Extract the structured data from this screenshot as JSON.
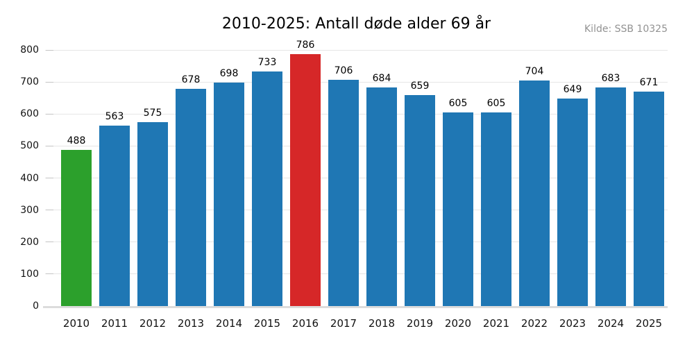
{
  "header": {
    "title": "2010-2025: Antall døde alder 69 år",
    "source": "Kilde: SSB 10325"
  },
  "chart_data": {
    "type": "bar",
    "title": "2010-2025: Antall døde alder 69 år",
    "source_annotation": "Kilde: SSB 10325",
    "categories": [
      "2010",
      "2011",
      "2012",
      "2013",
      "2014",
      "2015",
      "2016",
      "2017",
      "2018",
      "2019",
      "2020",
      "2021",
      "2022",
      "2023",
      "2024",
      "2025"
    ],
    "values": [
      488,
      563,
      575,
      678,
      698,
      733,
      786,
      706,
      684,
      659,
      605,
      605,
      704,
      649,
      683,
      671
    ],
    "bar_colors": [
      "#2ca02c",
      "#1f77b4",
      "#1f77b4",
      "#1f77b4",
      "#1f77b4",
      "#1f77b4",
      "#d62728",
      "#1f77b4",
      "#1f77b4",
      "#1f77b4",
      "#1f77b4",
      "#1f77b4",
      "#1f77b4",
      "#1f77b4",
      "#1f77b4",
      "#1f77b4"
    ],
    "default_bar_color": "#1f77b4",
    "min_highlight": {
      "category": "2010",
      "value": 488,
      "color": "#2ca02c"
    },
    "max_highlight": {
      "category": "2016",
      "value": 786,
      "color": "#d62728"
    },
    "value_labels_shown": true,
    "xlabel": "",
    "ylabel": "",
    "ylim": [
      0,
      800
    ],
    "yticks": [
      0,
      100,
      200,
      300,
      400,
      500,
      600,
      700,
      800
    ],
    "grid": true,
    "gridline_color": "#e6e6e6",
    "legend_position": "none"
  }
}
